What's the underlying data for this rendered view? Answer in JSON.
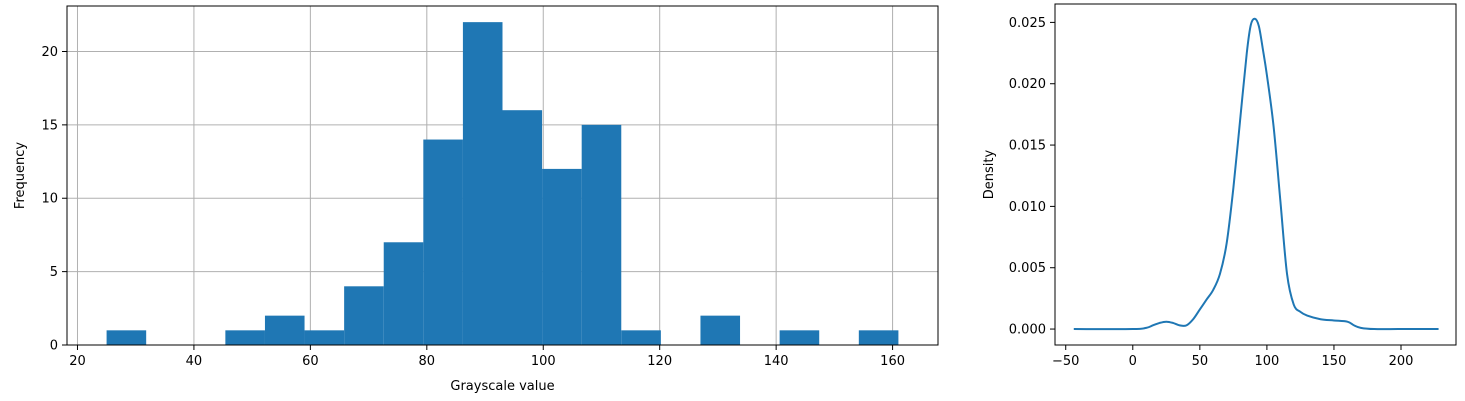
{
  "chart_data": [
    {
      "type": "bar",
      "subtype": "histogram",
      "xlabel": "Grayscale value",
      "ylabel": "Frequency",
      "xlim": [
        18.2,
        167.8
      ],
      "ylim": [
        0,
        23.1
      ],
      "grid": true,
      "color": "#1f77b4",
      "x_ticks": [
        20,
        40,
        60,
        80,
        100,
        120,
        140,
        160
      ],
      "y_ticks": [
        0,
        5,
        10,
        15,
        20
      ],
      "bin_start": 25,
      "bin_width": 6.8,
      "values": [
        1,
        0,
        0,
        1,
        2,
        1,
        4,
        7,
        14,
        22,
        16,
        12,
        15,
        1,
        0,
        2,
        0,
        1,
        0,
        1
      ]
    },
    {
      "type": "line",
      "xlabel": "",
      "ylabel": "Density",
      "xlim": [
        -58,
        241
      ],
      "ylim": [
        -0.0013,
        0.0265
      ],
      "grid": false,
      "color": "#1f77b4",
      "x_ticks": [
        -50,
        0,
        50,
        100,
        150,
        200
      ],
      "y_ticks": [
        0.0,
        0.005,
        0.01,
        0.015,
        0.02,
        0.025
      ],
      "y_tick_labels": [
        "0.000",
        "0.005",
        "0.010",
        "0.015",
        "0.020",
        "0.025"
      ],
      "x_tick_labels": [
        "−50",
        "0",
        "50",
        "100",
        "150",
        "200"
      ],
      "x": [
        -44,
        0,
        10,
        15,
        20,
        25,
        30,
        35,
        40,
        45,
        50,
        55,
        60,
        65,
        70,
        75,
        80,
        85,
        88,
        91,
        94,
        97,
        100,
        105,
        110,
        115,
        120,
        125,
        130,
        140,
        150,
        160,
        165,
        170,
        180,
        200,
        228
      ],
      "y": [
        0.0,
        0.0,
        0.0001,
        0.0003,
        0.0005,
        0.0006,
        0.0005,
        0.0003,
        0.0003,
        0.0008,
        0.0016,
        0.0024,
        0.0032,
        0.0045,
        0.007,
        0.0115,
        0.017,
        0.0225,
        0.0248,
        0.0253,
        0.0247,
        0.0228,
        0.0207,
        0.0165,
        0.0105,
        0.0045,
        0.002,
        0.0014,
        0.0011,
        0.0008,
        0.0007,
        0.0006,
        0.0003,
        0.0001,
        0.0,
        0.0,
        0.0
      ]
    }
  ]
}
